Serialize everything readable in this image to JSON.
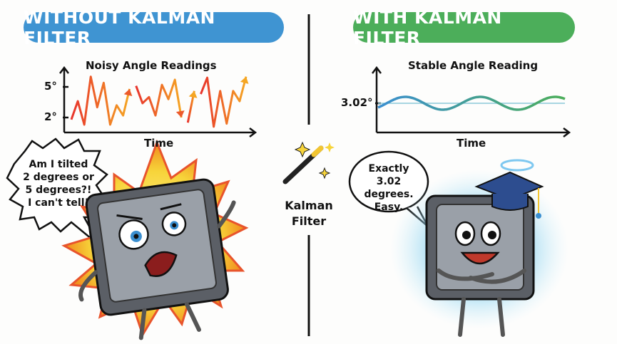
{
  "left": {
    "banner": "WITHOUT KALMAN FILTER",
    "speech": [
      "Am I tilted",
      "2 degrees or",
      "5 degrees?!",
      "I can't tell!"
    ]
  },
  "right": {
    "banner": "WITH KALMAN FILTER",
    "speech": [
      "Exactly",
      "3.02 degrees.",
      "Easy."
    ]
  },
  "middle": {
    "label_line1": "Kalman",
    "label_line2": "Filter",
    "icon": "magic-wand-icon"
  },
  "colors": {
    "left_banner": "#3f94d2",
    "right_banner": "#4cae5a",
    "noisy_start": "#e8342c",
    "noisy_end": "#f5a623",
    "stable_start": "#3b8fd0",
    "stable_end": "#4cae5a"
  },
  "chart_data": [
    {
      "type": "line",
      "title": "Noisy Angle Readings",
      "xlabel": "Time",
      "ylabel": "",
      "ytick_labels": [
        "5°",
        "2°"
      ],
      "yticks": [
        5,
        2
      ],
      "series": [
        {
          "values": [
            1.8,
            3.6,
            1.3,
            6.0,
            3.0,
            5.4,
            1.3,
            3.2,
            2.2,
            4.8
          ]
        },
        {
          "values": [
            5.1,
            3.4,
            4.0,
            2.2,
            5.2,
            3.8,
            5.7,
            2.0
          ]
        },
        {
          "values": [
            1.5,
            4.6
          ]
        },
        {
          "values": [
            4.3,
            5.9,
            1.1,
            4.6,
            1.4,
            4.6,
            3.6,
            6.0
          ]
        }
      ]
    },
    {
      "type": "line",
      "title": "Stable Angle Reading",
      "xlabel": "Time",
      "ylabel": "",
      "ytick_labels": [
        "3.02°"
      ],
      "yticks": [
        3.02
      ],
      "reference_line": 3.02
    }
  ]
}
